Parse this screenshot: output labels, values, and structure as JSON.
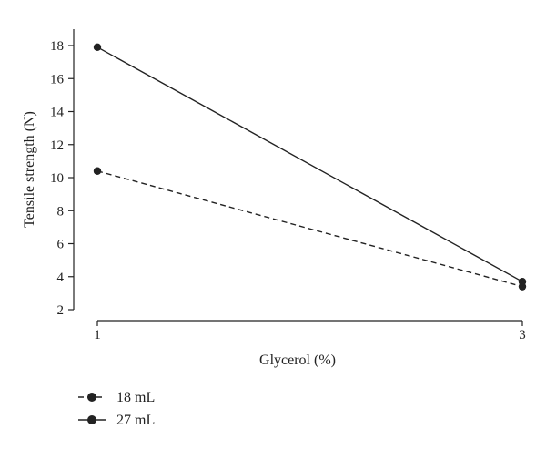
{
  "chart_data": {
    "type": "line",
    "xlabel": "Glycerol (%)",
    "ylabel": "Tensile strength (N)",
    "x": [
      1,
      3
    ],
    "x_ticks": [
      "1",
      "3"
    ],
    "y_ticks": [
      "2",
      "4",
      "6",
      "8",
      "10",
      "12",
      "14",
      "16",
      "18"
    ],
    "xlim": [
      1,
      3
    ],
    "ylim": [
      2,
      18
    ],
    "grid": false,
    "legend_position": "bottom-left",
    "series": [
      {
        "name": "18 mL",
        "values": [
          10.4,
          3.4
        ],
        "style": "dashed",
        "color": "#222222"
      },
      {
        "name": "27 mL",
        "values": [
          17.9,
          3.7
        ],
        "style": "solid",
        "color": "#222222"
      }
    ]
  }
}
